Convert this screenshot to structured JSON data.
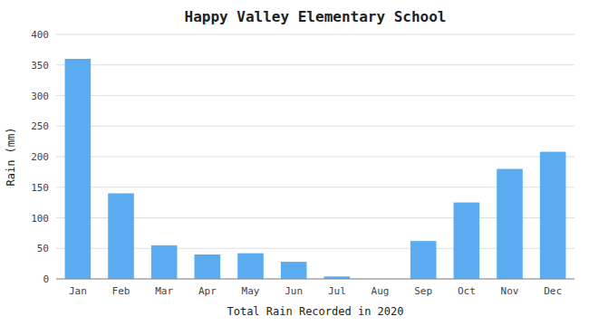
{
  "chart_data": {
    "type": "bar",
    "title": "Happy Valley Elementary School",
    "xlabel": "Total Rain Recorded in 2020",
    "ylabel": "Rain (mm)",
    "categories": [
      "Jan",
      "Feb",
      "Mar",
      "Apr",
      "May",
      "Jun",
      "Jul",
      "Aug",
      "Sep",
      "Oct",
      "Nov",
      "Dec"
    ],
    "values": [
      360,
      140,
      55,
      40,
      42,
      28,
      4,
      0,
      62,
      125,
      180,
      208
    ],
    "color": "#5aabf0",
    "ylim": [
      0,
      400
    ],
    "yticks": [
      0,
      50,
      100,
      150,
      200,
      250,
      300,
      350,
      400
    ],
    "grid": true
  }
}
